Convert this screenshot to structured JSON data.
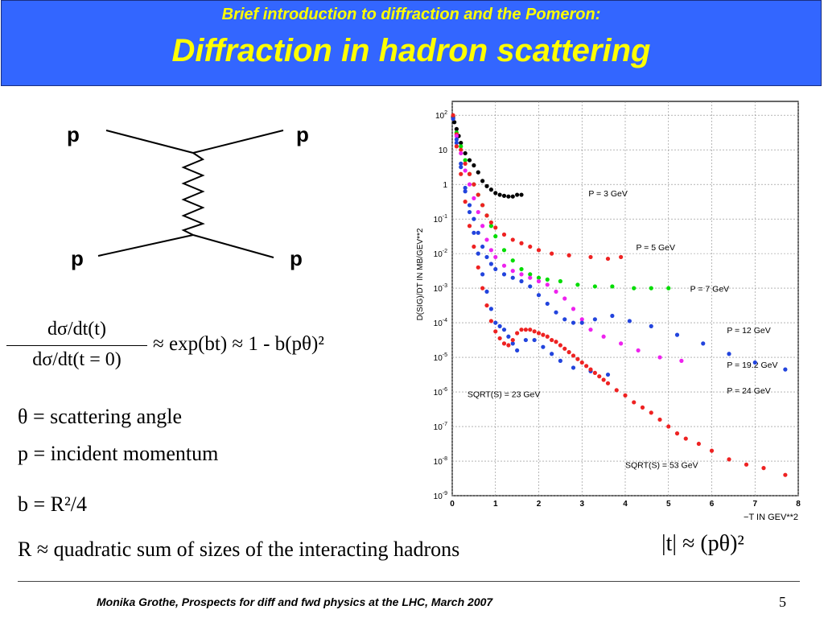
{
  "header": {
    "subtitle": "Brief introduction to diffraction and the Pomeron:",
    "title": "Diffraction in hadron scattering"
  },
  "feynman": {
    "labels": [
      "p",
      "p",
      "p",
      "p"
    ]
  },
  "formula": {
    "numerator": "dσ/dt(t)",
    "denominator": "dσ/dt(t = 0)",
    "rhs": "≈ exp(bt) ≈ 1 - b(pθ)²"
  },
  "definitions": [
    "θ = scattering angle",
    "p = incident momentum",
    "b = R²/4",
    "R ≈ quadratic sum of sizes of the interacting hadrons"
  ],
  "t_relation": "|t| ≈ (pθ)²",
  "chart_data": {
    "type": "scatter",
    "xlabel": "−T IN GEV**2",
    "ylabel": "D(SIG)/DT IN MB/GEV**2",
    "xlim": [
      0,
      8
    ],
    "ylim_log10": [
      -9,
      2.4
    ],
    "log_y": true,
    "x_ticks": [
      "0",
      "1",
      "2",
      "3",
      "4",
      "5",
      "6",
      "7",
      "8"
    ],
    "y_ticks": [
      "10^2",
      "10",
      "1",
      "10^-1",
      "10^-2",
      "10^-3",
      "10^-4",
      "10^-5",
      "10^-6",
      "10^-7",
      "10^-8",
      "10^-9"
    ],
    "grid": true,
    "annotations": [
      "P = 3 GeV",
      "P = 5 GeV",
      "P = 7 GeV",
      "P = 12 GeV",
      "P = 19.2 GeV",
      "P = 24 GeV",
      "SQRT(S) = 23 GeV",
      "SQRT(S) = 53 GeV"
    ],
    "series": [
      {
        "color": "#000000",
        "points": [
          [
            0.02,
            1.95
          ],
          [
            0.05,
            1.8
          ],
          [
            0.1,
            1.6
          ],
          [
            0.15,
            1.4
          ],
          [
            0.2,
            1.2
          ],
          [
            0.3,
            0.9
          ],
          [
            0.4,
            0.7
          ],
          [
            0.5,
            0.55
          ],
          [
            0.6,
            0.35
          ],
          [
            0.7,
            0.1
          ],
          [
            0.8,
            -0.05
          ],
          [
            0.9,
            -0.15
          ],
          [
            1.0,
            -0.25
          ],
          [
            1.1,
            -0.3
          ],
          [
            1.2,
            -0.33
          ],
          [
            1.3,
            -0.35
          ],
          [
            1.4,
            -0.35
          ],
          [
            1.5,
            -0.3
          ],
          [
            1.6,
            -0.3
          ]
        ]
      },
      {
        "color": "#00dd00",
        "points": [
          [
            0.02,
            1.9
          ],
          [
            0.1,
            1.5
          ],
          [
            0.2,
            1.1
          ],
          [
            0.3,
            0.7
          ],
          [
            0.4,
            0.3
          ],
          [
            0.5,
            0.0
          ],
          [
            0.6,
            -0.3
          ],
          [
            0.7,
            -0.6
          ],
          [
            0.8,
            -0.9
          ],
          [
            0.9,
            -1.2
          ],
          [
            1.0,
            -1.5
          ],
          [
            1.2,
            -1.9
          ],
          [
            1.4,
            -2.2
          ],
          [
            1.6,
            -2.45
          ],
          [
            1.8,
            -2.6
          ],
          [
            2.0,
            -2.7
          ],
          [
            2.2,
            -2.75
          ],
          [
            2.5,
            -2.8
          ],
          [
            2.9,
            -2.9
          ],
          [
            3.3,
            -2.95
          ],
          [
            3.7,
            -2.95
          ],
          [
            4.2,
            -3.0
          ],
          [
            4.6,
            -3.0
          ],
          [
            5.0,
            -3.0
          ]
        ]
      },
      {
        "color": "#ee2222",
        "points": [
          [
            0.02,
            1.9
          ],
          [
            0.1,
            1.45
          ],
          [
            0.2,
            1.0
          ],
          [
            0.3,
            0.6
          ],
          [
            0.4,
            0.3
          ],
          [
            0.5,
            0.0
          ],
          [
            0.6,
            -0.3
          ],
          [
            0.7,
            -0.6
          ],
          [
            0.8,
            -0.9
          ],
          [
            0.9,
            -1.1
          ],
          [
            1.0,
            -1.25
          ],
          [
            1.2,
            -1.45
          ],
          [
            1.4,
            -1.6
          ],
          [
            1.6,
            -1.7
          ],
          [
            1.8,
            -1.8
          ],
          [
            2.0,
            -1.9
          ],
          [
            2.3,
            -2.0
          ],
          [
            2.7,
            -2.05
          ],
          [
            3.2,
            -2.1
          ],
          [
            3.6,
            -2.15
          ],
          [
            3.9,
            -2.1
          ]
        ]
      },
      {
        "color": "#ee22ee",
        "points": [
          [
            0.02,
            1.9
          ],
          [
            0.1,
            1.4
          ],
          [
            0.2,
            0.9
          ],
          [
            0.3,
            0.4
          ],
          [
            0.4,
            0.0
          ],
          [
            0.5,
            -0.4
          ],
          [
            0.6,
            -0.8
          ],
          [
            0.7,
            -1.2
          ],
          [
            0.8,
            -1.6
          ],
          [
            0.9,
            -1.9
          ],
          [
            1.0,
            -2.1
          ],
          [
            1.2,
            -2.35
          ],
          [
            1.4,
            -2.5
          ],
          [
            1.6,
            -2.6
          ],
          [
            1.8,
            -2.7
          ],
          [
            2.0,
            -2.8
          ],
          [
            2.2,
            -2.9
          ],
          [
            2.4,
            -3.1
          ],
          [
            2.6,
            -3.3
          ],
          [
            2.8,
            -3.6
          ],
          [
            3.0,
            -3.9
          ],
          [
            3.2,
            -4.2
          ],
          [
            3.5,
            -4.4
          ],
          [
            3.9,
            -4.6
          ],
          [
            4.3,
            -4.8
          ],
          [
            4.8,
            -5.0
          ],
          [
            5.3,
            -5.1
          ]
        ]
      },
      {
        "color": "#2244dd",
        "points": [
          [
            0.02,
            1.9
          ],
          [
            0.1,
            1.3
          ],
          [
            0.2,
            0.6
          ],
          [
            0.3,
            -0.1
          ],
          [
            0.4,
            -0.6
          ],
          [
            0.5,
            -1.0
          ],
          [
            0.6,
            -1.4
          ],
          [
            0.7,
            -1.8
          ],
          [
            0.8,
            -2.1
          ],
          [
            0.9,
            -2.3
          ],
          [
            1.0,
            -2.45
          ],
          [
            1.2,
            -2.6
          ],
          [
            1.4,
            -2.7
          ],
          [
            1.6,
            -2.8
          ],
          [
            1.8,
            -2.95
          ],
          [
            2.0,
            -3.2
          ],
          [
            2.2,
            -3.45
          ],
          [
            2.4,
            -3.7
          ],
          [
            2.6,
            -3.9
          ],
          [
            2.8,
            -4.0
          ],
          [
            3.0,
            -4.0
          ],
          [
            3.3,
            -3.9
          ],
          [
            3.7,
            -3.8
          ],
          [
            4.1,
            -3.95
          ],
          [
            4.6,
            -4.1
          ],
          [
            5.2,
            -4.35
          ],
          [
            5.8,
            -4.6
          ],
          [
            6.4,
            -4.9
          ],
          [
            7.0,
            -5.15
          ],
          [
            7.7,
            -5.35
          ]
        ]
      },
      {
        "color": "#2244dd",
        "points": [
          [
            0.02,
            1.9
          ],
          [
            0.1,
            1.2
          ],
          [
            0.2,
            0.5
          ],
          [
            0.3,
            -0.2
          ],
          [
            0.4,
            -0.8
          ],
          [
            0.5,
            -1.4
          ],
          [
            0.6,
            -2.0
          ],
          [
            0.7,
            -2.6
          ],
          [
            0.8,
            -3.1
          ],
          [
            0.9,
            -3.6
          ],
          [
            1.0,
            -4.0
          ],
          [
            1.1,
            -4.1
          ],
          [
            1.2,
            -4.2
          ],
          [
            1.3,
            -4.4
          ],
          [
            1.4,
            -4.6
          ],
          [
            1.5,
            -4.8
          ],
          [
            1.7,
            -4.5
          ],
          [
            1.9,
            -4.5
          ],
          [
            2.1,
            -4.7
          ],
          [
            2.3,
            -4.9
          ],
          [
            2.5,
            -5.1
          ],
          [
            2.8,
            -5.3
          ],
          [
            3.2,
            -5.4
          ],
          [
            3.6,
            -5.5
          ]
        ]
      },
      {
        "color": "#ee2222",
        "points": [
          [
            0.02,
            2.0
          ],
          [
            0.1,
            1.1
          ],
          [
            0.2,
            0.3
          ],
          [
            0.3,
            -0.5
          ],
          [
            0.4,
            -1.2
          ],
          [
            0.5,
            -1.8
          ],
          [
            0.6,
            -2.4
          ],
          [
            0.7,
            -3.0
          ],
          [
            0.8,
            -3.5
          ],
          [
            0.9,
            -3.95
          ],
          [
            1.0,
            -4.25
          ],
          [
            1.1,
            -4.45
          ],
          [
            1.2,
            -4.6
          ],
          [
            1.3,
            -4.65
          ],
          [
            1.4,
            -4.5
          ],
          [
            1.5,
            -4.3
          ],
          [
            1.6,
            -4.2
          ],
          [
            1.7,
            -4.2
          ],
          [
            1.8,
            -4.2
          ],
          [
            1.9,
            -4.25
          ],
          [
            2.0,
            -4.3
          ],
          [
            2.1,
            -4.35
          ],
          [
            2.2,
            -4.4
          ],
          [
            2.3,
            -4.5
          ],
          [
            2.4,
            -4.55
          ],
          [
            2.5,
            -4.65
          ],
          [
            2.6,
            -4.75
          ],
          [
            2.7,
            -4.85
          ],
          [
            2.8,
            -4.95
          ],
          [
            2.9,
            -5.05
          ],
          [
            3.0,
            -5.15
          ],
          [
            3.1,
            -5.25
          ],
          [
            3.2,
            -5.35
          ],
          [
            3.3,
            -5.45
          ],
          [
            3.4,
            -5.55
          ],
          [
            3.5,
            -5.65
          ],
          [
            3.6,
            -5.75
          ],
          [
            3.8,
            -5.95
          ],
          [
            4.0,
            -6.1
          ],
          [
            4.2,
            -6.3
          ],
          [
            4.4,
            -6.45
          ],
          [
            4.6,
            -6.6
          ],
          [
            4.8,
            -6.8
          ],
          [
            5.0,
            -7.0
          ],
          [
            5.2,
            -7.2
          ],
          [
            5.4,
            -7.35
          ],
          [
            5.7,
            -7.5
          ],
          [
            6.0,
            -7.7
          ],
          [
            6.4,
            -7.95
          ],
          [
            6.8,
            -8.1
          ],
          [
            7.2,
            -8.2
          ],
          [
            7.7,
            -8.4
          ]
        ]
      }
    ]
  },
  "footer": {
    "text": "Monika Grothe, Prospects for diff and fwd physics at the LHC, March 2007",
    "page": "5"
  }
}
